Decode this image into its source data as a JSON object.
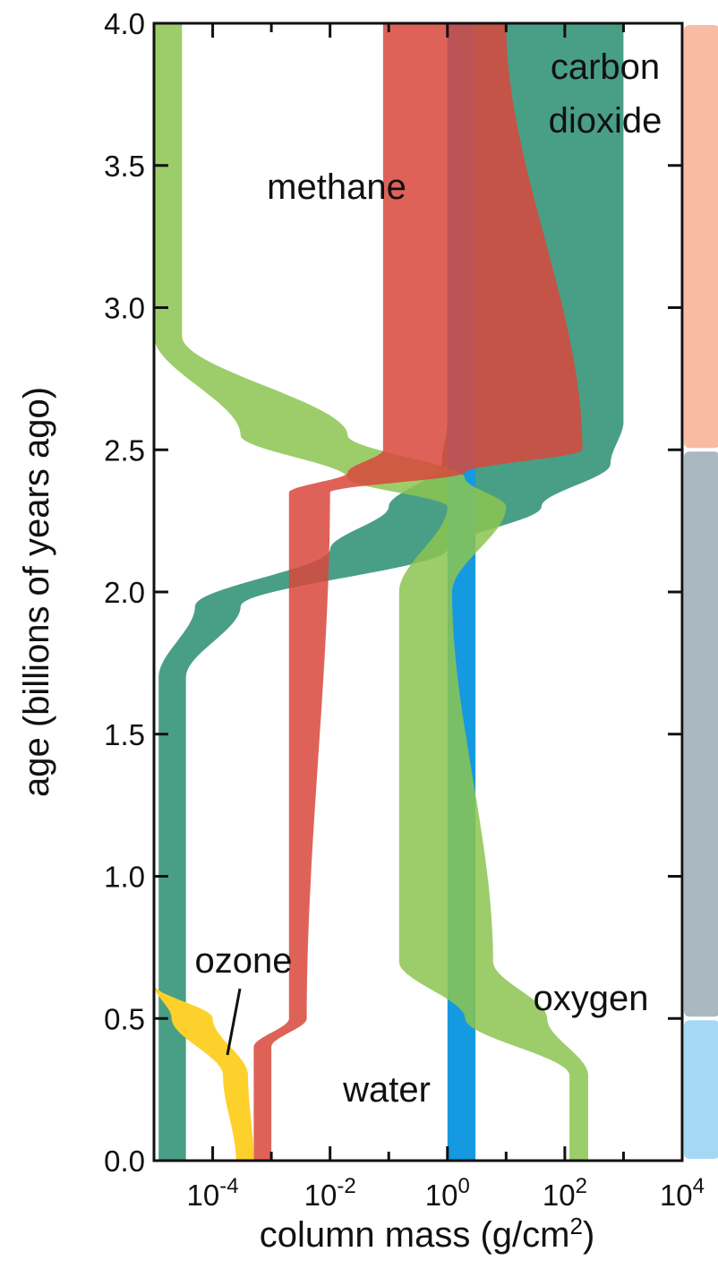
{
  "chart_data": {
    "type": "area",
    "title": "",
    "xlabel": "column mass (g/cm2)",
    "xlabel_main": "column mass (g/cm",
    "xlabel_sup": "2",
    "xlabel_tail": ")",
    "ylabel": "age (billions of years ago)",
    "x_scale": "log",
    "xlim": [
      1e-05,
      10000.0
    ],
    "ylim": [
      0,
      4
    ],
    "y_ticks": [
      "0.0",
      "0.5",
      "1.0",
      "1.5",
      "2.0",
      "2.5",
      "3.0",
      "3.5",
      "4.0"
    ],
    "x_ticks": [
      {
        "base": "10",
        "exp": "-4",
        "value": 0.0001
      },
      {
        "base": "10",
        "exp": "-2",
        "value": 0.01
      },
      {
        "base": "10",
        "exp": "0",
        "value": 1
      },
      {
        "base": "10",
        "exp": "2",
        "value": 100
      },
      {
        "base": "10",
        "exp": "4",
        "value": 10000
      }
    ],
    "grid": false,
    "colors": {
      "carbon_dioxide": "#3f9a80",
      "methane": "#d9463c",
      "oxygen": "#8cc450",
      "water": "#1599e0",
      "ozone": "#fdd02c",
      "eon_top": "#f7bca3",
      "eon_mid": "#a9b9bf",
      "eon_bottom": "#a5d8f3"
    },
    "series": [
      {
        "name": "carbon dioxide",
        "label": [
          "carbon",
          "dioxide"
        ],
        "band": [
          {
            "age": 0.0,
            "low": 1.2e-05,
            "high": 3.5e-05
          },
          {
            "age": 1.7,
            "low": 1.2e-05,
            "high": 3.5e-05
          },
          {
            "age": 1.95,
            "low": 5e-05,
            "high": 0.0003
          },
          {
            "age": 2.15,
            "low": 0.01,
            "high": 1
          },
          {
            "age": 2.3,
            "low": 0.1,
            "high": 40
          },
          {
            "age": 2.45,
            "low": 0.8,
            "high": 600
          },
          {
            "age": 2.6,
            "low": 1,
            "high": 1000
          },
          {
            "age": 4.0,
            "low": 1,
            "high": 1000
          }
        ]
      },
      {
        "name": "methane",
        "label": [
          "methane"
        ],
        "band": [
          {
            "age": 0.0,
            "low": 0.0005,
            "high": 0.001
          },
          {
            "age": 0.4,
            "low": 0.0005,
            "high": 0.001
          },
          {
            "age": 0.5,
            "low": 0.002,
            "high": 0.004
          },
          {
            "age": 2.35,
            "low": 0.002,
            "high": 0.01
          },
          {
            "age": 2.42,
            "low": 0.02,
            "high": 2
          },
          {
            "age": 2.5,
            "low": 0.08,
            "high": 200
          },
          {
            "age": 4.0,
            "low": 0.08,
            "high": 10
          }
        ]
      },
      {
        "name": "oxygen",
        "label": [
          "oxygen"
        ],
        "band": [
          {
            "age": 0.0,
            "low": 120,
            "high": 250
          },
          {
            "age": 0.3,
            "low": 120,
            "high": 250
          },
          {
            "age": 0.5,
            "low": 2,
            "high": 50
          },
          {
            "age": 0.7,
            "low": 0.15,
            "high": 6
          },
          {
            "age": 2.0,
            "low": 0.15,
            "high": 1.2
          },
          {
            "age": 2.3,
            "low": 1.0,
            "high": 10
          },
          {
            "age": 2.4,
            "low": 0.02,
            "high": 2
          },
          {
            "age": 2.55,
            "low": 0.0003,
            "high": 0.02
          },
          {
            "age": 2.9,
            "low": 1e-05,
            "high": 3e-05
          },
          {
            "age": 4.0,
            "low": 1e-05,
            "high": 3e-05
          }
        ]
      },
      {
        "name": "water",
        "label": [
          "water"
        ],
        "band": [
          {
            "age": 0.0,
            "low": 1.0,
            "high": 3.0
          },
          {
            "age": 4.0,
            "low": 1.0,
            "high": 3.0
          }
        ]
      },
      {
        "name": "ozone",
        "label": [
          "ozone"
        ],
        "band": [
          {
            "age": 0.0,
            "low": 0.00025,
            "high": 0.0005
          },
          {
            "age": 0.3,
            "low": 0.00015,
            "high": 0.0004
          },
          {
            "age": 0.5,
            "low": 2e-05,
            "high": 0.0001
          },
          {
            "age": 0.62,
            "low": 1e-05,
            "high": 1e-05
          }
        ]
      }
    ],
    "eon_bands": [
      {
        "from": 2.5,
        "to": 4.0,
        "color": "#f7bca3"
      },
      {
        "from": 0.5,
        "to": 2.5,
        "color": "#a9b9bf"
      },
      {
        "from": 0.0,
        "to": 0.5,
        "color": "#a5d8f3"
      }
    ]
  }
}
